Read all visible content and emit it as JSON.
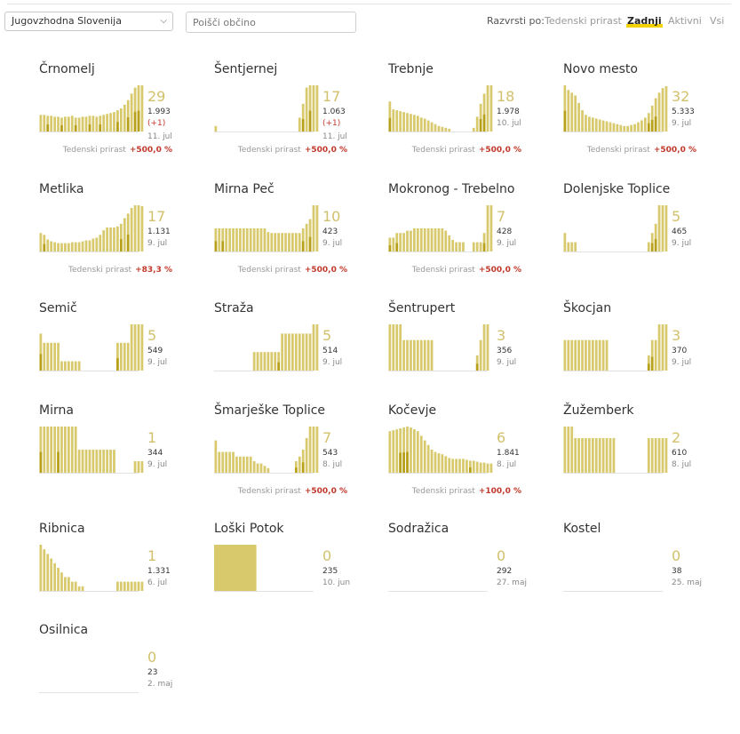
{
  "toolbar": {
    "region_value": "Jugovzhodna Slovenija",
    "search_placeholder": "Poišči občino",
    "sort_label": "Razvrsti po:",
    "sort_options": [
      "Tedenski prirast",
      "Zadnji",
      "Aktivni",
      "Vsi"
    ],
    "sort_active": "Zadnji"
  },
  "colors": {
    "bar_light": "#d8c96c",
    "bar_dark": "#b8a11a",
    "active_text": "#d2c16c",
    "growth_value": "#c0392b",
    "sort_underline": "#f2d300"
  },
  "growth_label": "Tedenski prirast",
  "municipalities": [
    {
      "name": "Črnomelj",
      "active": "29",
      "total": "1.993",
      "delta": "(+1)",
      "date": "11. jul",
      "growth": "+500,0 %",
      "bars": [
        0.36,
        0.36,
        0.34,
        0.34,
        0.32,
        0.32,
        0.3,
        0.32,
        0.32,
        0.34,
        0.3,
        0.3,
        0.32,
        0.32,
        0.34,
        0.34,
        0.32,
        0.34,
        0.36,
        0.38,
        0.4,
        0.42,
        0.46,
        0.5,
        0.58,
        0.68,
        0.82,
        0.95,
        1.0,
        1.0
      ],
      "dark": [
        2,
        6,
        10,
        14,
        17,
        22,
        25,
        27,
        28
      ]
    },
    {
      "name": "Šentjernej",
      "active": "17",
      "total": "1.063",
      "delta": "(+1)",
      "date": "11. jul",
      "growth": "+500,0 %",
      "bars": [
        0.12,
        0,
        0,
        0,
        0,
        0,
        0,
        0,
        0,
        0,
        0,
        0,
        0,
        0,
        0,
        0,
        0,
        0,
        0,
        0,
        0,
        0,
        0,
        0,
        0.3,
        0.6,
        0.95,
        1.0,
        1.0,
        1.0
      ],
      "dark": [
        25,
        27
      ]
    },
    {
      "name": "Trebnje",
      "active": "18",
      "total": "1.978",
      "delta": "",
      "date": "10. jul",
      "growth": "+500,0 %",
      "bars": [
        0.65,
        0.48,
        0.46,
        0.44,
        0.42,
        0.4,
        0.38,
        0.36,
        0.34,
        0.3,
        0.28,
        0.24,
        0.2,
        0.16,
        0.12,
        0.1,
        0.08,
        0.06,
        0,
        0,
        0,
        0,
        0,
        0,
        0.08,
        0.32,
        0.6,
        0.82,
        1.0,
        1.0
      ],
      "dark": [
        0,
        26,
        27
      ]
    },
    {
      "name": "Novo mesto",
      "active": "32",
      "total": "5.333",
      "delta": "",
      "date": "9. jul",
      "growth": "+500,0 %",
      "bars": [
        1.0,
        0.9,
        0.84,
        0.78,
        0.62,
        0.46,
        0.36,
        0.32,
        0.3,
        0.28,
        0.26,
        0.24,
        0.22,
        0.2,
        0.18,
        0.16,
        0.14,
        0.12,
        0.12,
        0.14,
        0.16,
        0.2,
        0.24,
        0.3,
        0.4,
        0.56,
        0.72,
        0.84,
        0.94,
        0.98
      ],
      "dark": [
        0,
        24,
        25,
        26
      ]
    },
    {
      "name": "Metlika",
      "active": "17",
      "total": "1.131",
      "delta": "",
      "date": "9. jul",
      "growth": "+83,3 %",
      "growth_dim": true,
      "bars": [
        0.4,
        0.36,
        0.26,
        0.22,
        0.2,
        0.18,
        0.18,
        0.18,
        0.18,
        0.2,
        0.2,
        0.2,
        0.22,
        0.24,
        0.24,
        0.28,
        0.3,
        0.36,
        0.46,
        0.52,
        0.52,
        0.52,
        0.54,
        0.6,
        0.72,
        0.82,
        0.94,
        1.0,
        1.0,
        0.98
      ],
      "dark": [
        1,
        23,
        25
      ]
    },
    {
      "name": "Mirna Peč",
      "active": "10",
      "total": "423",
      "delta": "",
      "date": "9. jul",
      "growth": "+500,0 %",
      "bars": [
        0.5,
        0.5,
        0.5,
        0.5,
        0.5,
        0.5,
        0.5,
        0.5,
        0.5,
        0.5,
        0.5,
        0.5,
        0.5,
        0.5,
        0.5,
        0.42,
        0.4,
        0.4,
        0.4,
        0.4,
        0.4,
        0.4,
        0.4,
        0.4,
        0.4,
        0.5,
        0.6,
        0.7,
        1.0,
        1.0
      ],
      "dark": [
        0,
        2,
        25,
        27
      ]
    },
    {
      "name": "Mokronog - Trebelno",
      "active": "7",
      "total": "428",
      "delta": "",
      "date": "9. jul",
      "growth": "+500,0 %",
      "bars": [
        0.3,
        0.3,
        0.4,
        0.4,
        0.4,
        0.45,
        0.45,
        0.5,
        0.5,
        0.5,
        0.5,
        0.5,
        0.5,
        0.5,
        0.5,
        0.5,
        0.45,
        0.35,
        0.25,
        0.2,
        0.2,
        0.2,
        0,
        0,
        0.2,
        0.2,
        0.2,
        0.4,
        1.0,
        1.0
      ],
      "dark": [
        0,
        2,
        27
      ]
    },
    {
      "name": "Dolenjske Toplice",
      "active": "5",
      "total": "465",
      "delta": "",
      "date": "9. jul",
      "growth": "",
      "bars": [
        0.4,
        0.2,
        0.2,
        0.2,
        0,
        0,
        0,
        0,
        0,
        0,
        0,
        0,
        0,
        0,
        0,
        0,
        0,
        0,
        0,
        0,
        0,
        0,
        0,
        0,
        0.2,
        0.4,
        0.6,
        1.0,
        1.0,
        1.0
      ],
      "dark": [
        25,
        26
      ]
    },
    {
      "name": "Semič",
      "active": "5",
      "total": "549",
      "delta": "",
      "date": "9. jul",
      "growth": "",
      "bars": [
        0.8,
        0.6,
        0.6,
        0.6,
        0.6,
        0.6,
        0.2,
        0.2,
        0.2,
        0.2,
        0.2,
        0.2,
        0,
        0,
        0,
        0,
        0,
        0,
        0,
        0,
        0,
        0,
        0.6,
        0.6,
        0.6,
        0.6,
        1.0,
        1.0,
        1.0,
        1.0
      ],
      "dark": [
        0,
        22
      ]
    },
    {
      "name": "Straža",
      "active": "5",
      "total": "514",
      "delta": "",
      "date": "9. jul",
      "growth": "",
      "bars": [
        0,
        0,
        0,
        0,
        0,
        0,
        0,
        0,
        0,
        0,
        0,
        0.4,
        0.4,
        0.4,
        0.4,
        0.4,
        0.4,
        0.4,
        0.4,
        0.8,
        0.8,
        0.8,
        0.8,
        0.8,
        0.8,
        0.8,
        0.8,
        0.8,
        1.0,
        1.0
      ],
      "dark": [
        18
      ]
    },
    {
      "name": "Šentrupert",
      "active": "3",
      "total": "356",
      "delta": "",
      "date": "9. jul",
      "growth": "",
      "bars": [
        1.0,
        1.0,
        1.0,
        1.0,
        0.66,
        0.66,
        0.66,
        0.66,
        0.66,
        0.66,
        0.66,
        0.66,
        0.66,
        0,
        0,
        0,
        0,
        0,
        0,
        0,
        0,
        0,
        0,
        0,
        0,
        0.33,
        0.66,
        1.0,
        1.0,
        0
      ],
      "dark": [
        25
      ]
    },
    {
      "name": "Škocjan",
      "active": "3",
      "total": "370",
      "delta": "",
      "date": "9. jul",
      "growth": "",
      "bars": [
        0.66,
        0.66,
        0.66,
        0.66,
        0.66,
        0.66,
        0.66,
        0.66,
        0.66,
        0.66,
        0.66,
        0.66,
        0.66,
        0,
        0,
        0,
        0,
        0,
        0,
        0,
        0,
        0,
        0,
        0,
        0.33,
        0.66,
        0.66,
        1.0,
        1.0,
        1.0
      ],
      "dark": [
        24,
        25
      ]
    },
    {
      "name": "Mirna",
      "active": "1",
      "total": "344",
      "delta": "",
      "date": "9. jul",
      "growth": "",
      "bars": [
        1.0,
        1.0,
        1.0,
        1.0,
        1.0,
        1.0,
        1.0,
        1.0,
        1.0,
        1.0,
        1.0,
        0.5,
        0.5,
        0.5,
        0.5,
        0.5,
        0.5,
        0.5,
        0.5,
        0.5,
        0.5,
        0.5,
        0,
        0,
        0,
        0,
        0,
        0.25,
        0.25,
        0.25
      ],
      "dark": [
        0,
        5
      ]
    },
    {
      "name": "Šmarješke Toplice",
      "active": "7",
      "total": "543",
      "delta": "",
      "date": "8. jul",
      "growth": "+500,0 %",
      "bars": [
        0.7,
        0.45,
        0.45,
        0.45,
        0.45,
        0.45,
        0.35,
        0.35,
        0.35,
        0.35,
        0.35,
        0.25,
        0.2,
        0.2,
        0.15,
        0.1,
        0,
        0,
        0,
        0,
        0,
        0,
        0,
        0.25,
        0.35,
        0.5,
        0.75,
        1.0,
        1.0,
        1.0
      ],
      "dark": [
        23,
        25
      ]
    },
    {
      "name": "Kočevje",
      "active": "6",
      "total": "1.841",
      "delta": "",
      "date": "8. jul",
      "growth": "+100,0 %",
      "bars": [
        0.9,
        0.92,
        0.94,
        0.96,
        0.98,
        1.0,
        0.98,
        0.94,
        0.9,
        0.8,
        0.7,
        0.6,
        0.5,
        0.45,
        0.42,
        0.4,
        0.36,
        0.32,
        0.3,
        0.3,
        0.3,
        0.3,
        0.28,
        0.26,
        0.26,
        0.24,
        0.22,
        0.22,
        0.2,
        0.2
      ],
      "dark": [
        3,
        4,
        5,
        23
      ]
    },
    {
      "name": "Žužemberk",
      "active": "2",
      "total": "610",
      "delta": "",
      "date": "8. jul",
      "growth": "",
      "bars": [
        1.0,
        1.0,
        1.0,
        0.75,
        0.75,
        0.75,
        0.75,
        0.75,
        0.75,
        0.75,
        0.75,
        0.75,
        0.75,
        0.75,
        0.75,
        0,
        0,
        0,
        0,
        0,
        0,
        0,
        0,
        0,
        0.75,
        0.75,
        0.75,
        0.75,
        0.75,
        0.75
      ],
      "dark": []
    },
    {
      "name": "Ribnica",
      "active": "1",
      "total": "1.331",
      "delta": "",
      "date": "6. jul",
      "growth": "",
      "bars": [
        1.0,
        0.9,
        0.8,
        0.7,
        0.6,
        0.5,
        0.4,
        0.3,
        0.3,
        0.2,
        0.2,
        0.1,
        0.1,
        0,
        0,
        0,
        0,
        0,
        0,
        0,
        0,
        0,
        0.2,
        0.2,
        0.2,
        0.2,
        0.2,
        0.2,
        0.2,
        0.2
      ],
      "dark": []
    },
    {
      "name": "Loški Potok",
      "active": "0",
      "total": "235",
      "delta": "",
      "date": "10. jun",
      "growth": "",
      "bars": [
        1.0,
        1.0,
        1.0,
        1.0,
        1.0,
        1.0,
        1.0,
        1.0,
        1.0,
        1.0,
        1.0,
        1.0,
        0,
        0,
        0,
        0,
        0,
        0,
        0,
        0,
        0,
        0,
        0,
        0,
        0,
        0,
        0,
        0,
        0,
        0
      ],
      "dark": [],
      "solid": true
    },
    {
      "name": "Sodražica",
      "active": "0",
      "total": "292",
      "delta": "",
      "date": "27. maj",
      "growth": "",
      "bars": [],
      "dark": []
    },
    {
      "name": "Kostel",
      "active": "0",
      "total": "38",
      "delta": "",
      "date": "25. maj",
      "growth": "",
      "bars": [],
      "dark": []
    },
    {
      "name": "Osilnica",
      "active": "0",
      "total": "23",
      "delta": "",
      "date": "2. maj",
      "growth": "",
      "bars": [],
      "dark": []
    }
  ]
}
